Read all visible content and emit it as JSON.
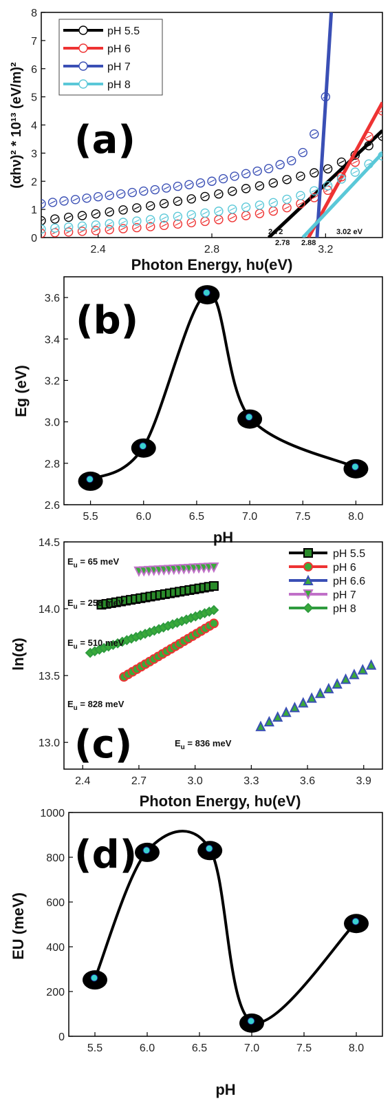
{
  "colors": {
    "black": "#000000",
    "red": "#ee3333",
    "blue": "#3a4fb5",
    "cyan": "#5ac8d8",
    "green": "#2e9b3e",
    "magenta": "#c070c8",
    "marker_cyan": "#3ad0d0"
  },
  "chart_data": [
    {
      "panel": "(a)",
      "type": "line",
      "xlabel": "Photon Energy, hυ(eV)",
      "ylabel": "(αhν)² * 10¹³ (eV/m)²",
      "xlim": [
        2.2,
        3.4
      ],
      "ylim": [
        0,
        8
      ],
      "xticks": [
        "2.4",
        "2.8",
        "3.2"
      ],
      "yticks": [
        "0",
        "1",
        "2",
        "3",
        "4",
        "5",
        "6",
        "7",
        "8"
      ],
      "legend_position": "top-left",
      "series": [
        {
          "name": "pH 5.5",
          "color": "black",
          "x": [
            2.2,
            2.4,
            2.6,
            2.8,
            3.0,
            3.1,
            3.2,
            3.3,
            3.4
          ],
          "y": [
            0.6,
            0.85,
            1.15,
            1.5,
            1.9,
            2.15,
            2.4,
            2.9,
            3.6
          ],
          "tangent": {
            "x": [
              3.0,
              3.4
            ],
            "y": [
              0,
              3.8
            ]
          }
        },
        {
          "name": "pH 6",
          "color": "red",
          "x": [
            2.2,
            2.4,
            2.6,
            2.8,
            3.0,
            3.1,
            3.2,
            3.3,
            3.4
          ],
          "y": [
            0.15,
            0.25,
            0.4,
            0.6,
            0.9,
            1.15,
            1.6,
            2.6,
            4.5
          ],
          "tangent": {
            "x": [
              3.14,
              3.4
            ],
            "y": [
              0,
              4.8
            ]
          }
        },
        {
          "name": "pH 7",
          "color": "blue",
          "x": [
            2.2,
            2.4,
            2.6,
            2.8,
            3.0,
            3.1,
            3.15,
            3.2
          ],
          "y": [
            1.2,
            1.45,
            1.7,
            2.0,
            2.45,
            2.8,
            3.35,
            5.0
          ],
          "tangent": {
            "x": [
              3.17,
              3.22
            ],
            "y": [
              0,
              8
            ]
          }
        },
        {
          "name": "pH 8",
          "color": "cyan",
          "x": [
            2.2,
            2.4,
            2.6,
            2.8,
            3.0,
            3.1,
            3.2,
            3.3,
            3.4
          ],
          "y": [
            0.3,
            0.45,
            0.65,
            0.9,
            1.2,
            1.45,
            1.8,
            2.3,
            2.9
          ],
          "tangent": {
            "x": [
              3.12,
              3.4
            ],
            "y": [
              0,
              3.0
            ]
          }
        }
      ],
      "annotations": [
        "2.72",
        "2.78",
        "2.88",
        "3.02 eV"
      ]
    },
    {
      "panel": "(b)",
      "type": "line",
      "xlabel": "pH",
      "ylabel": "Eg (eV)",
      "xlim": [
        5.25,
        8.25
      ],
      "ylim": [
        2.6,
        3.7
      ],
      "xticks": [
        "5.5",
        "6.0",
        "6.5",
        "7.0",
        "7.5",
        "8.0"
      ],
      "yticks": [
        "2.6",
        "2.8",
        "3.0",
        "3.2",
        "3.4",
        "3.6"
      ],
      "x": [
        5.5,
        6.0,
        6.6,
        7.0,
        8.0
      ],
      "y": [
        2.72,
        2.88,
        3.62,
        3.02,
        2.78
      ]
    },
    {
      "panel": "(c)",
      "type": "scatter",
      "xlabel": "Photon Energy, hυ(eV)",
      "ylabel": "ln(α)",
      "xlim": [
        2.3,
        4.0
      ],
      "ylim": [
        12.8,
        14.5
      ],
      "xticks": [
        "2.4",
        "2.7",
        "3.0",
        "3.3",
        "3.6",
        "3.9"
      ],
      "yticks": [
        "13.0",
        "13.5",
        "14.0",
        "14.5"
      ],
      "legend_position": "top-right",
      "series": [
        {
          "name": "pH 5.5",
          "color": "black",
          "marker": "square",
          "x_range": [
            2.5,
            3.1
          ],
          "y_range": [
            14.03,
            14.17
          ],
          "n": 24
        },
        {
          "name": "pH 6",
          "color": "red",
          "marker": "circle",
          "x_range": [
            2.62,
            3.1
          ],
          "y_range": [
            13.49,
            13.89
          ],
          "n": 22
        },
        {
          "name": "pH 6.6",
          "color": "blue",
          "marker": "triangle-up",
          "x_range": [
            3.35,
            3.94
          ],
          "y_range": [
            13.12,
            13.58
          ],
          "n": 14
        },
        {
          "name": "pH 7",
          "color": "magenta",
          "marker": "triangle-down",
          "x_range": [
            2.7,
            3.1
          ],
          "y_range": [
            14.28,
            14.31
          ],
          "n": 16
        },
        {
          "name": "pH 8",
          "color": "green",
          "marker": "diamond",
          "x_range": [
            2.44,
            3.1
          ],
          "y_range": [
            13.67,
            13.99
          ],
          "n": 28
        }
      ],
      "annotations": [
        "65 meV",
        "258 meV",
        "510 meV",
        "828 meV",
        "836 meV"
      ],
      "annotation_prefix": "E",
      "annotation_sub": "u"
    },
    {
      "panel": "(d)",
      "type": "line",
      "xlabel": "pH",
      "ylabel": "EU (meV)",
      "xlim": [
        5.25,
        8.25
      ],
      "ylim": [
        0,
        1000
      ],
      "xticks": [
        "5.5",
        "6.0",
        "6.5",
        "7.0",
        "7.5",
        "8.0"
      ],
      "yticks": [
        "0",
        "200",
        "400",
        "600",
        "800",
        "1000"
      ],
      "x": [
        5.5,
        6.0,
        6.6,
        7.0,
        8.0
      ],
      "y": [
        258,
        828,
        836,
        65,
        510
      ]
    }
  ]
}
